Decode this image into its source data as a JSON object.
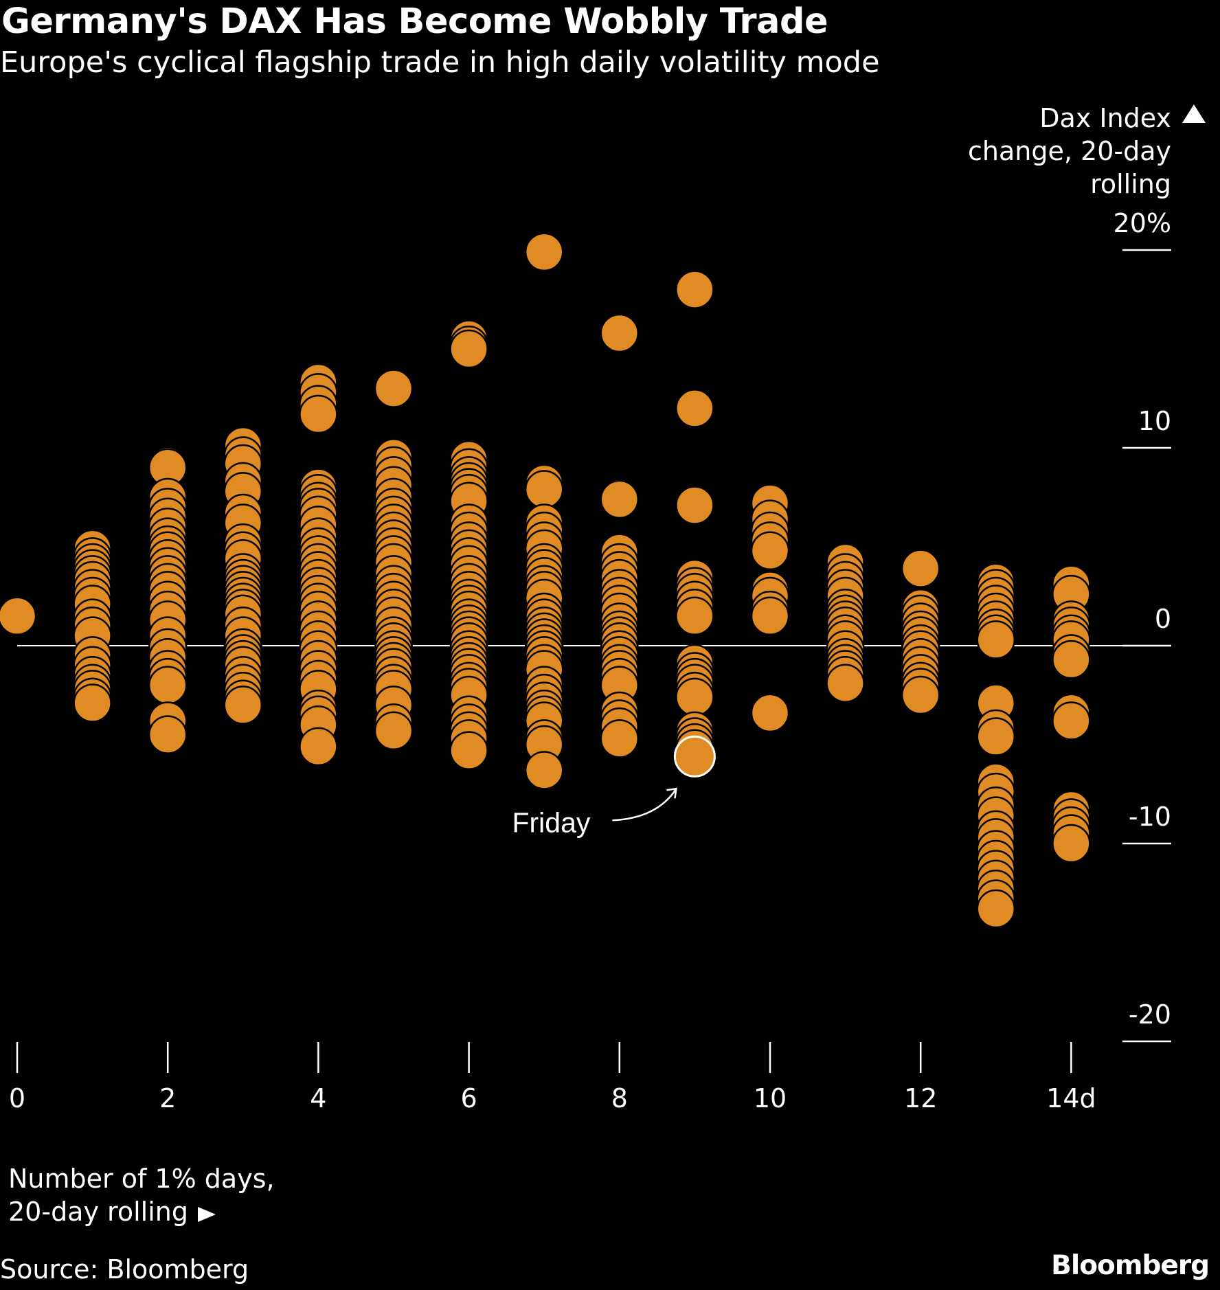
{
  "chart_data": {
    "type": "scatter",
    "title": "Germany's DAX Has Become Wobbly Trade",
    "subtitle": "Europe's cyclical flagship trade in high daily volatility mode",
    "ylabel": [
      "Dax Index",
      "change, 20-day",
      "rolling"
    ],
    "xlabel": [
      "Number of 1% days,",
      "20-day rolling"
    ],
    "source": "Source: Bloomberg",
    "brand": "Bloomberg",
    "xlim": [
      0,
      14
    ],
    "ylim": [
      -20,
      20
    ],
    "x_ticks": [
      {
        "value": 0,
        "label": "0"
      },
      {
        "value": 2,
        "label": "2"
      },
      {
        "value": 4,
        "label": "4"
      },
      {
        "value": 6,
        "label": "6"
      },
      {
        "value": 8,
        "label": "8"
      },
      {
        "value": 10,
        "label": "10"
      },
      {
        "value": 12,
        "label": "12"
      },
      {
        "value": 14,
        "label": "14d"
      }
    ],
    "y_ticks": [
      {
        "value": 20,
        "label": "20%"
      },
      {
        "value": 10,
        "label": "10"
      },
      {
        "value": 0,
        "label": "0"
      },
      {
        "value": -10,
        "label": "-10"
      },
      {
        "value": -20,
        "label": "-20"
      }
    ],
    "point_color": "#E08B24",
    "highlight_color": "#FFFFFF",
    "annotation": {
      "label": "Friday",
      "x": 9,
      "y": -5.6
    },
    "series": [
      {
        "x": 0,
        "values": [
          1.5
        ]
      },
      {
        "x": 1,
        "values": [
          4.9,
          4.5,
          4.2,
          3.9,
          3.6,
          3.3,
          2.9,
          2.5,
          2.1,
          1.4,
          1.0,
          0.5,
          -0.5,
          -1.0,
          -1.5,
          -1.9,
          -2.2,
          -2.6,
          -2.9
        ]
      },
      {
        "x": 2,
        "values": [
          9.1,
          9.0,
          7.5,
          7.0,
          6.5,
          6.0,
          5.5,
          5.1,
          4.8,
          4.4,
          4.0,
          3.6,
          3.2,
          2.8,
          2.3,
          1.8,
          1.3,
          0.5,
          -0.1,
          -0.6,
          -1.2,
          -1.6,
          -2.0,
          -3.8,
          -4.5
        ]
      },
      {
        "x": 3,
        "values": [
          10.1,
          9.6,
          9.2,
          8.3,
          7.8,
          6.7,
          6.2,
          5.2,
          4.8,
          4.4,
          3.7,
          3.4,
          3.1,
          2.8,
          2.5,
          2.2,
          1.9,
          1.6,
          1.0,
          0.5,
          -0.1,
          -0.4,
          -0.7,
          -1.0,
          -1.5,
          -1.9,
          -2.3,
          -2.7,
          -3.0
        ]
      },
      {
        "x": 4,
        "values": [
          13.3,
          12.8,
          12.2,
          11.7,
          8.0,
          7.7,
          7.3,
          7.0,
          6.6,
          6.1,
          5.5,
          5.0,
          4.6,
          4.2,
          3.8,
          3.4,
          3.0,
          2.6,
          2.2,
          1.8,
          1.3,
          0.8,
          0.3,
          -0.2,
          -0.7,
          -1.2,
          -1.7,
          -2.2,
          -3.2,
          -3.5,
          -4.0,
          -5.1
        ]
      },
      {
        "x": 5,
        "values": [
          13.0,
          9.5,
          9.1,
          8.6,
          8.1,
          7.5,
          7.0,
          6.6,
          6.2,
          5.8,
          5.4,
          5.0,
          4.6,
          4.2,
          3.6,
          3.1,
          2.7,
          2.3,
          1.9,
          1.5,
          1.0,
          0.5,
          0.2,
          -0.2,
          -0.5,
          -0.8,
          -1.1,
          -1.5,
          -1.9,
          -2.2,
          -3.0,
          -3.9,
          -4.3
        ]
      },
      {
        "x": 6,
        "values": [
          15.5,
          15.2,
          15.0,
          9.4,
          9.0,
          8.6,
          8.3,
          8.0,
          7.7,
          7.3,
          6.2,
          5.8,
          5.3,
          4.9,
          4.5,
          4.1,
          3.6,
          3.2,
          2.8,
          2.4,
          2.1,
          1.8,
          1.4,
          1.1,
          0.8,
          0.5,
          0.2,
          -0.2,
          -0.5,
          -0.8,
          -1.1,
          -1.4,
          -1.8,
          -2.1,
          -2.5,
          -3.5,
          -3.9,
          -4.3,
          -4.7,
          -5.3
        ]
      },
      {
        "x": 7,
        "values": [
          19.9,
          8.2,
          7.9,
          6.2,
          5.8,
          5.3,
          4.9,
          4.2,
          3.9,
          3.5,
          3.1,
          2.8,
          2.4,
          1.7,
          1.4,
          1.0,
          0.7,
          0.4,
          0.1,
          -0.2,
          -0.5,
          -0.9,
          -1.2,
          -2.0,
          -2.4,
          -2.8,
          -3.2,
          -3.5,
          -3.8,
          -4.7,
          -5.0,
          -6.3
        ]
      },
      {
        "x": 8,
        "values": [
          15.8,
          7.4,
          4.7,
          4.2,
          3.8,
          3.4,
          2.9,
          2.5,
          2.1,
          1.7,
          1.2,
          0.8,
          0.5,
          0.2,
          -0.2,
          -0.5,
          -0.9,
          -1.2,
          -1.6,
          -2.0,
          -3.3,
          -3.7,
          -4.1,
          -4.7
        ]
      },
      {
        "x": 9,
        "values": [
          18.0,
          12.0,
          7.1,
          3.4,
          3.0,
          2.7,
          2.3,
          1.9,
          1.5,
          -0.9,
          -1.3,
          -1.6,
          -1.9,
          -2.3,
          -2.6,
          -4.3,
          -4.6,
          -4.9,
          -5.2,
          -5.6
        ]
      },
      {
        "x": 10,
        "values": [
          7.2,
          6.4,
          5.8,
          5.3,
          4.8,
          2.8,
          2.5,
          1.8,
          1.5,
          -3.4
        ]
      },
      {
        "x": 11,
        "values": [
          4.2,
          3.7,
          3.3,
          2.9,
          2.5,
          1.9,
          1.6,
          1.3,
          1.0,
          0.6,
          0.3,
          -0.2,
          -0.6,
          -0.9,
          -1.2,
          -1.5,
          -1.9
        ]
      },
      {
        "x": 12,
        "values": [
          3.9,
          1.9,
          1.6,
          1.2,
          0.8,
          0.5,
          0.1,
          -0.2,
          -0.6,
          -1.0,
          -1.4,
          -1.8,
          -2.1,
          -2.5
        ]
      },
      {
        "x": 13,
        "values": [
          3.2,
          2.9,
          2.5,
          2.1,
          1.7,
          1.3,
          0.9,
          0.6,
          0.3,
          -2.9,
          -4.2,
          -4.6,
          -6.9,
          -7.4,
          -8.1,
          -8.6,
          -9.3,
          -9.7,
          -10.3,
          -10.8,
          -11.3,
          -11.8,
          -12.3,
          -12.8,
          -13.3
        ]
      },
      {
        "x": 14,
        "values": [
          3.1,
          2.6,
          1.3,
          1.0,
          0.6,
          0.3,
          -0.4,
          -0.7,
          -3.4,
          -3.8,
          -8.3,
          -8.7,
          -9.1,
          -9.5,
          -10.0
        ]
      }
    ]
  }
}
